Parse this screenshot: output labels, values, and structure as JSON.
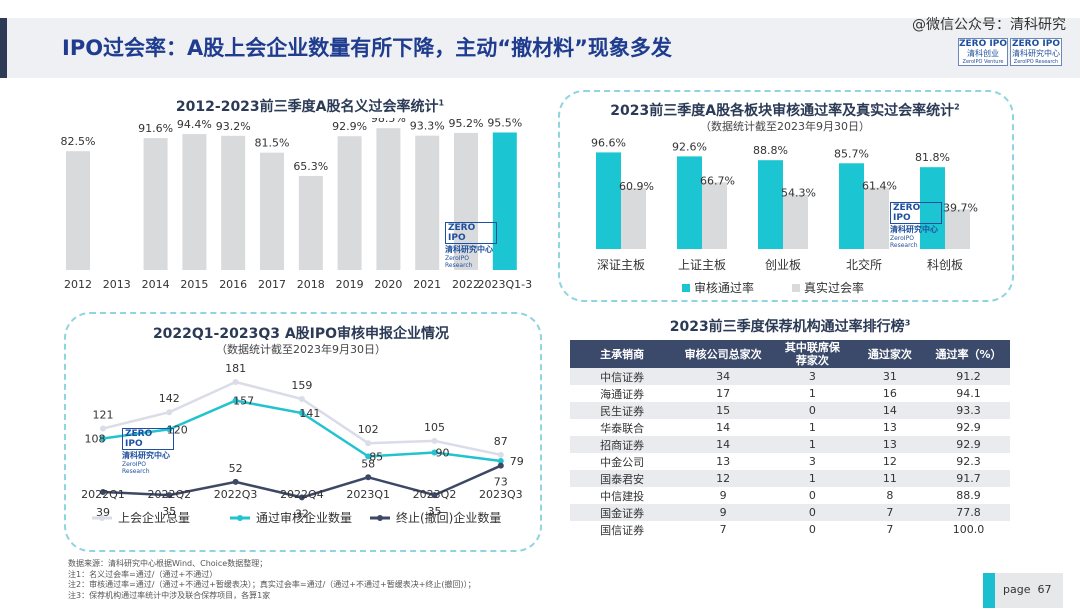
{
  "header": {
    "title": "IPO过会率：A股上会企业数量有所下降，主动“撤材料”现象多发",
    "watermark": "@微信公众号：清科研究",
    "logo_text": "ZERO IPO",
    "logo_sub": "清科创业",
    "logo_text2": "ZERO IPO",
    "logo_sub2": "清科研究中心",
    "logo_tiny": "ZeroIPO Venture",
    "logo_tiny2": "ZeroIPO Research"
  },
  "chart_watermark": {
    "brand": "ZERO IPO",
    "cn": "清科研究中心",
    "en": "ZeroIPO Research"
  },
  "chart_data": [
    {
      "type": "bar",
      "title": "2012-2023前三季度A股名义过会率统计",
      "title_note": "1",
      "categories": [
        "2012",
        "2013",
        "2014",
        "2015",
        "2016",
        "2017",
        "2018",
        "2019",
        "2020",
        "2021",
        "2022",
        "2023Q1-3"
      ],
      "values": [
        82.5,
        null,
        91.6,
        94.4,
        93.2,
        81.5,
        65.3,
        92.9,
        98.5,
        93.3,
        95.2,
        95.5
      ],
      "labels": [
        "82.5%",
        "",
        "91.6%",
        "94.4%",
        "93.2%",
        "81.5%",
        "65.3%",
        "92.9%",
        "98.5%",
        "93.3%",
        "95.2%",
        "95.5%"
      ],
      "colors": {
        "default": "#d9dadc",
        "highlight": "#1bc6d2"
      },
      "highlight_index": 11
    },
    {
      "type": "bar",
      "title": "2023前三季度A股各板块审核通过率及真实过会率统计",
      "title_note": "2",
      "subtitle": "（数据统计截至2023年9月30日）",
      "categories": [
        "深证主板",
        "上证主板",
        "创业板",
        "北交所",
        "科创板"
      ],
      "series": [
        {
          "name": "审核通过率",
          "values": [
            96.6,
            92.6,
            88.8,
            85.7,
            81.8
          ],
          "labels": [
            "96.6%",
            "92.6%",
            "88.8%",
            "85.7%",
            "81.8%"
          ],
          "color": "#1bc6d2"
        },
        {
          "name": "真实过会率",
          "values": [
            60.9,
            66.7,
            54.3,
            61.4,
            39.7
          ],
          "labels": [
            "60.9%",
            "66.7%",
            "54.3%",
            "61.4%",
            "39.7%"
          ],
          "color": "#d9dadc"
        }
      ],
      "legend": "bottom"
    },
    {
      "type": "line",
      "title": "2022Q1-2023Q3 A股IPO审核申报企业情况",
      "subtitle": "（数据统计截至2023年9月30日）",
      "categories": [
        "2022Q1",
        "2022Q2",
        "2022Q3",
        "2022Q4",
        "2023Q1",
        "2023Q2",
        "2023Q3"
      ],
      "series": [
        {
          "name": "上会企业总量",
          "values": [
            121,
            142,
            181,
            159,
            102,
            105,
            87
          ],
          "color": "#dadce8"
        },
        {
          "name": "通过审核企业数量",
          "values": [
            108,
            120,
            157,
            141,
            85,
            90,
            79
          ],
          "color": "#22c3cf"
        },
        {
          "name": "终止(撤回)企业数量",
          "values": [
            39,
            35,
            52,
            32,
            58,
            35,
            73
          ],
          "color": "#3d4866"
        }
      ],
      "legend": "bottom"
    },
    {
      "type": "table",
      "title": "2023前三季度保荐机构通过率排行榜",
      "title_note": "3",
      "columns": [
        "主承销商",
        "审核公司总家次",
        "其中联席保荐家次",
        "通过家次",
        "通过率（%）"
      ],
      "rows": [
        [
          "中信证券",
          "34",
          "3",
          "31",
          "91.2"
        ],
        [
          "海通证券",
          "17",
          "1",
          "16",
          "94.1"
        ],
        [
          "民生证券",
          "15",
          "0",
          "14",
          "93.3"
        ],
        [
          "华泰联合",
          "14",
          "1",
          "13",
          "92.9"
        ],
        [
          "招商证券",
          "14",
          "1",
          "13",
          "92.9"
        ],
        [
          "中金公司",
          "13",
          "3",
          "12",
          "92.3"
        ],
        [
          "国泰君安",
          "12",
          "1",
          "11",
          "91.7"
        ],
        [
          "中信建投",
          "9",
          "0",
          "8",
          "88.9"
        ],
        [
          "国金证券",
          "9",
          "0",
          "7",
          "77.8"
        ],
        [
          "国信证券",
          "7",
          "0",
          "7",
          "100.0"
        ]
      ]
    }
  ],
  "notes": [
    "数据来源：清科研究中心根据Wind、Choice数据整理；",
    "注1：名义过会率=通过/（通过+不通过）",
    "注2：审核通过率=通过/（通过+不通过+暂缓表决）；真实过会率=通过/（通过+不通过+暂缓表决+终止(撤回)）；",
    "注3：保荐机构通过率统计中涉及联合保荐项目，各算1家"
  ],
  "page": {
    "label": "page",
    "number": "67"
  }
}
